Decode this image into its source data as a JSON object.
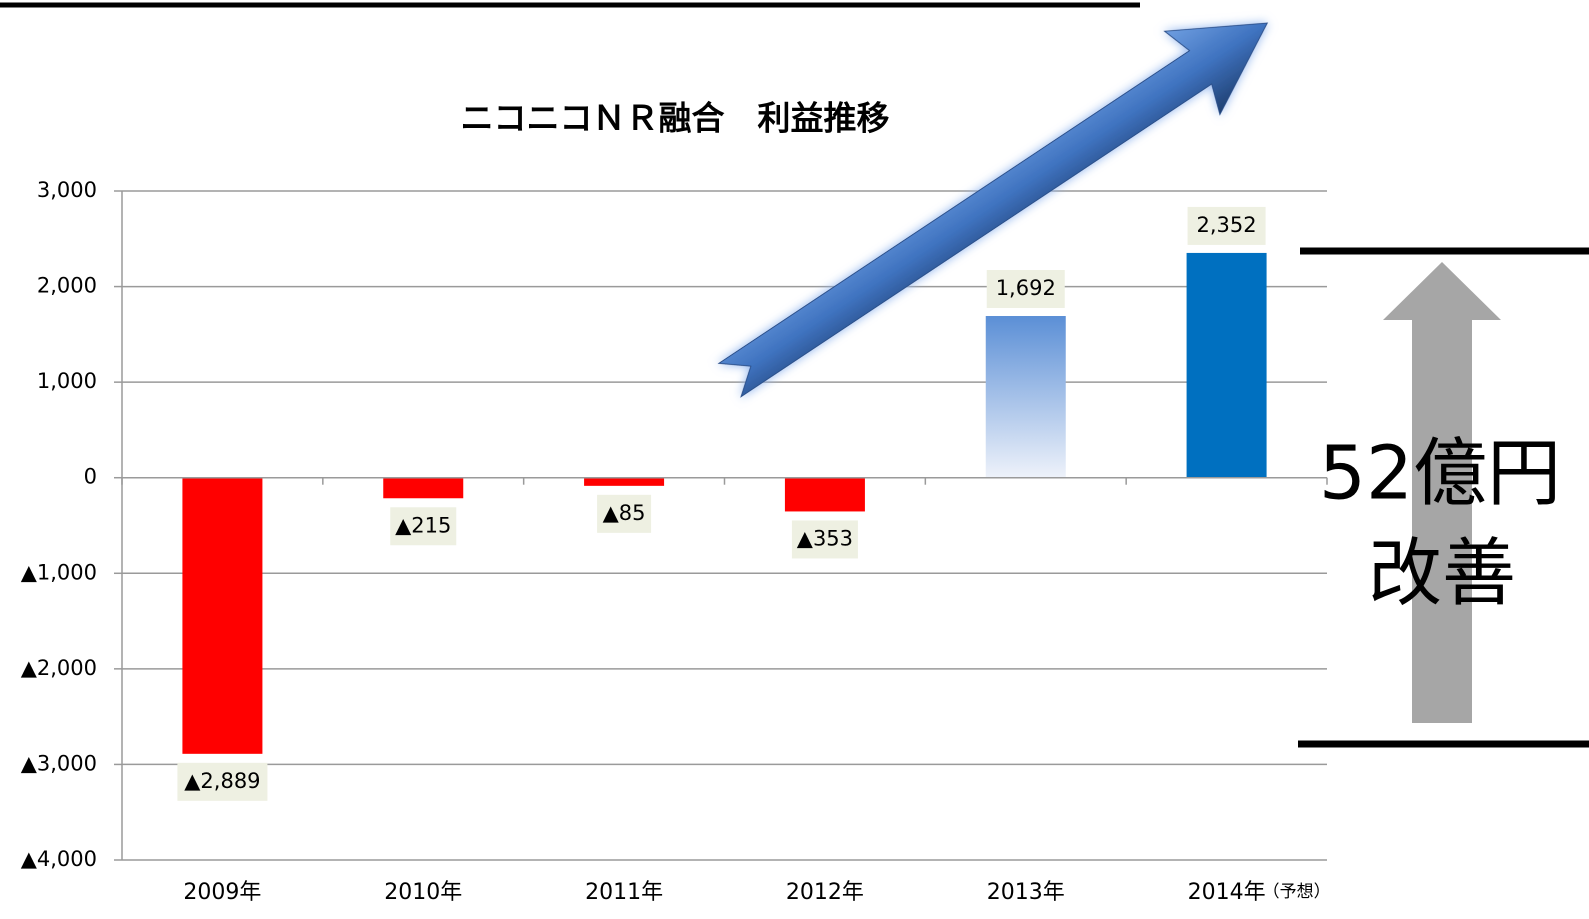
{
  "chart_data": {
    "type": "bar",
    "title": "ニコニコＮＲ融合　利益推移",
    "categories": [
      "2009年",
      "2010年",
      "2011年",
      "2012年",
      "2013年",
      "2014年"
    ],
    "category_note": "（予想）",
    "values": [
      -2889,
      -215,
      -85,
      -353,
      1692,
      2352
    ],
    "value_labels": [
      "▲2,889",
      "▲215",
      "▲85",
      "▲353",
      "1,692",
      "2,352"
    ],
    "colors": [
      "#ff0000",
      "#ff0000",
      "#ff0000",
      "#ff0000",
      "#5b8fd6",
      "#0070c0"
    ],
    "ylim": [
      -4000,
      3000
    ],
    "yticks": [
      {
        "value": -4000,
        "label": "▲4,000"
      },
      {
        "value": -3000,
        "label": "▲3,000"
      },
      {
        "value": -2000,
        "label": "▲2,000"
      },
      {
        "value": -1000,
        "label": "▲1,000"
      },
      0,
      {
        "value": 1000,
        "label": "1,000"
      },
      {
        "value": 2000,
        "label": "2,000"
      },
      {
        "value": 3000,
        "label": "3,000"
      }
    ],
    "grid": true,
    "annotation": [
      "52億円",
      "改善"
    ]
  }
}
